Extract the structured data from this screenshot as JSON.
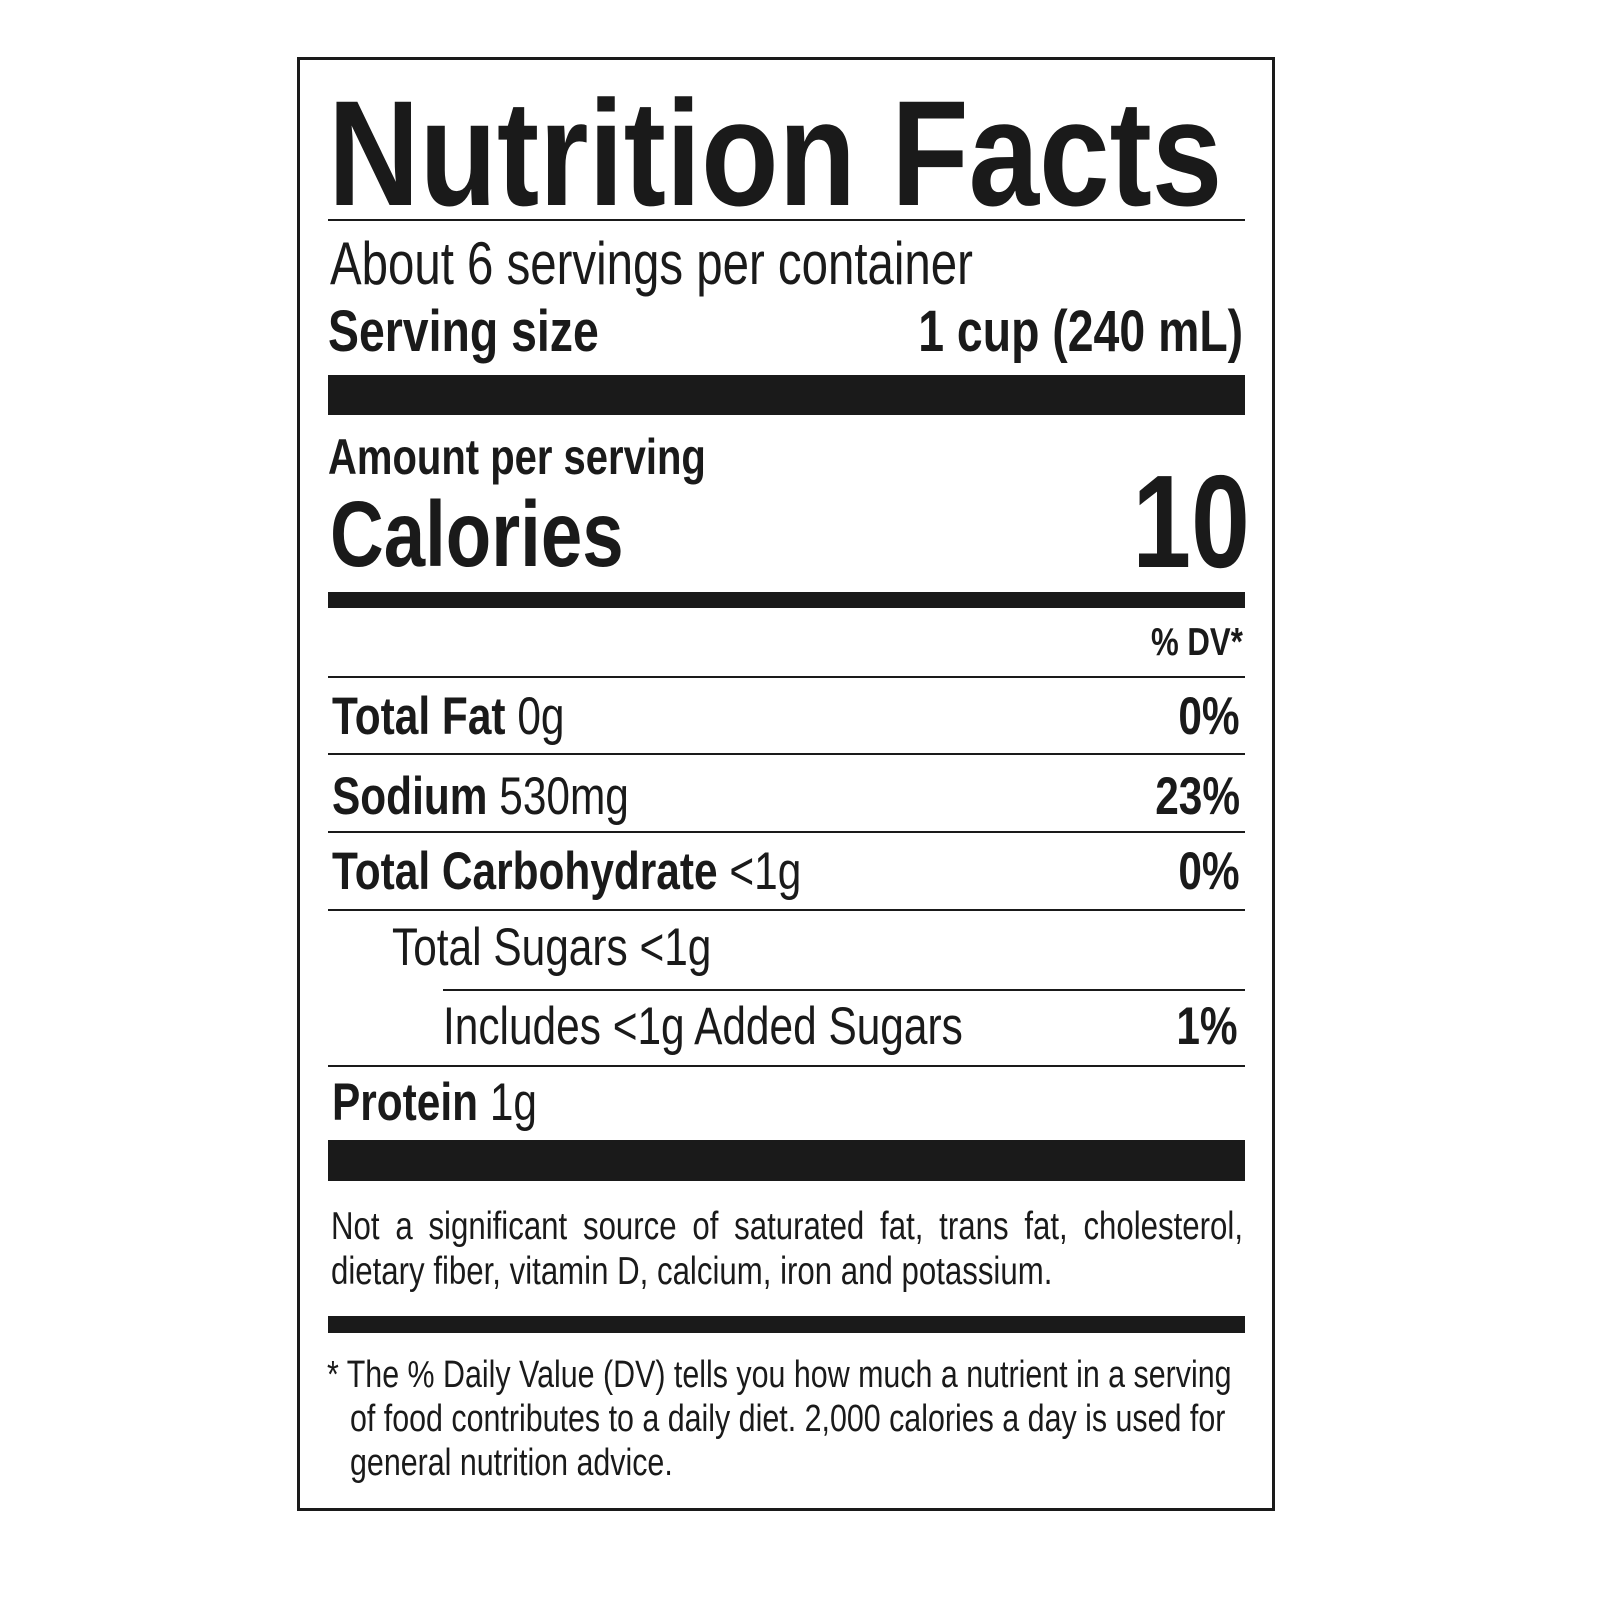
{
  "title": "Nutrition Facts",
  "servings_per_container": "About 6 servings per container",
  "serving_size": {
    "label": "Serving size",
    "value": "1 cup (240 mL)"
  },
  "amount_per_serving": "Amount per serving",
  "calories": {
    "label": "Calories",
    "value": "10"
  },
  "dv_header": "% DV*",
  "nutrients": [
    {
      "name": "Total Fat",
      "amount": "0g",
      "dv": "0%"
    },
    {
      "name": "Sodium",
      "amount": "530mg",
      "dv": "23%"
    },
    {
      "name": "Total Carbohydrate",
      "amount": "<1g",
      "dv": "0%"
    },
    {
      "name": "Total Sugars <1g",
      "amount": "",
      "dv": ""
    },
    {
      "name": "Includes <1g Added Sugars",
      "amount": "",
      "dv": "1%"
    },
    {
      "name": "Protein",
      "amount": "1g",
      "dv": ""
    }
  ],
  "not_significant": [
    "Not a significant source of saturated fat, trans fat, cholesterol,",
    "dietary fiber, vitamin D, calcium, iron and potassium."
  ],
  "footnote": [
    "* The % Daily Value (DV) tells you how much a nutrient in a serving",
    "of food contributes to a daily diet. 2,000 calories a day is used for",
    "general nutrition advice."
  ]
}
